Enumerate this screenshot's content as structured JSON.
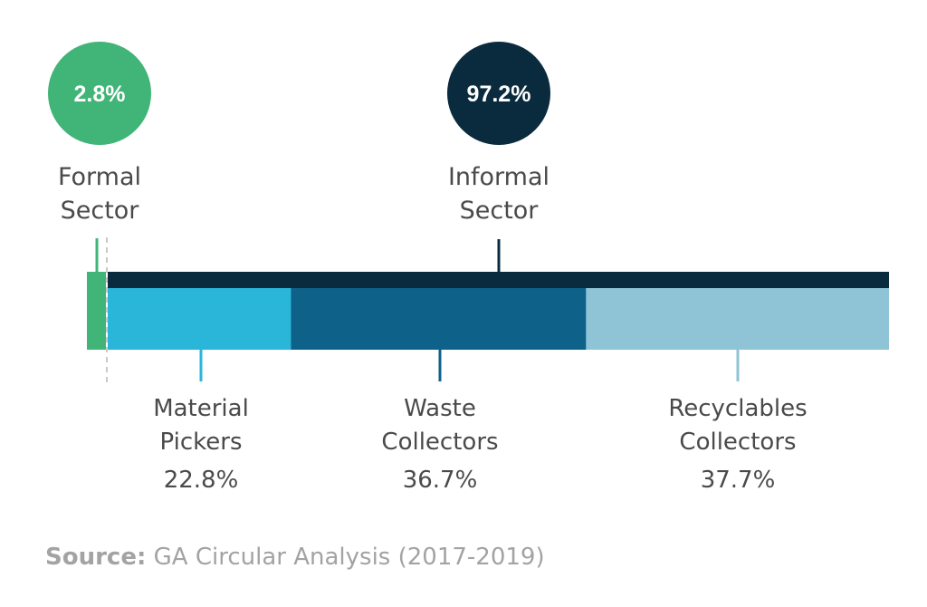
{
  "chart_data": {
    "type": "bar",
    "orientation": "horizontal-stacked",
    "sectors": [
      {
        "name": "Formal Sector",
        "lines": [
          "Formal",
          "Sector"
        ],
        "value": 2.8,
        "label": "2.8%",
        "color": "#41b477"
      },
      {
        "name": "Informal Sector",
        "lines": [
          "Informal",
          "Sector"
        ],
        "value": 97.2,
        "label": "97.2%",
        "color": "#0a2b3e"
      }
    ],
    "categories": [
      {
        "name": "Material Pickers",
        "lines": [
          "Material",
          "Pickers"
        ],
        "value": 22.8,
        "label": "22.8%",
        "color": "#2ab6d9"
      },
      {
        "name": "Waste Collectors",
        "lines": [
          "Waste",
          "Collectors"
        ],
        "value": 36.7,
        "label": "36.7%",
        "color": "#0e6189"
      },
      {
        "name": "Recyclables Collectors",
        "lines": [
          "Recyclables",
          "Collectors"
        ],
        "value": 37.7,
        "label": "37.7%",
        "color": "#8fc4d7"
      }
    ],
    "unit": "%",
    "total": 100
  },
  "source": {
    "prefix": "Source:",
    "text": " GA Circular Analysis (2017-2019)"
  }
}
